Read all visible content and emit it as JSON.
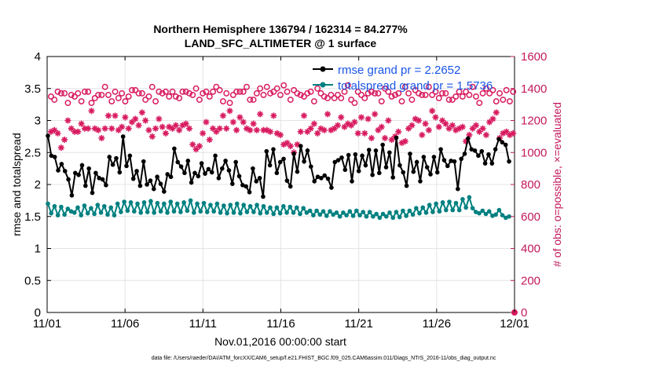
{
  "chart_data": {
    "type": "line",
    "title": "Northern Hemisphere 136794 / 162314 = 84.277%",
    "subtitle": "LAND_SFC_ALTIMETER @ 1 surface",
    "xlabel": "Nov.01,2016 00:00:00 start",
    "ylabel": "rmse and totalspread",
    "y2label": "# of obs: o=possible, ×=evaluated",
    "footer": "data file: /Users/raeder/DAI/ATM_forcXX/CAM6_setup/f.e21.FHIST_BGC.f09_025.CAM6assim.011/Diags_NTrS_2016-11/obs_diag_output.nc",
    "xticks": [
      {
        "day": 0,
        "label": "11/01"
      },
      {
        "day": 5,
        "label": "11/06"
      },
      {
        "day": 10,
        "label": "11/11"
      },
      {
        "day": 15,
        "label": "11/16"
      },
      {
        "day": 20,
        "label": "11/21"
      },
      {
        "day": 25,
        "label": "11/26"
      },
      {
        "day": 30,
        "label": "12/01"
      }
    ],
    "xlim": [
      0,
      30
    ],
    "ylim": [
      0,
      4
    ],
    "yticks": [
      "0",
      "0.5",
      "1",
      "1.5",
      "2",
      "2.5",
      "3",
      "3.5",
      "4"
    ],
    "y2lim": [
      0,
      1600
    ],
    "y2ticks": [
      "0",
      "200",
      "400",
      "600",
      "800",
      "1000",
      "1200",
      "1400",
      "1600"
    ],
    "legend_position": "top-right",
    "colors": {
      "rmse": "#000000",
      "spread": "#008080",
      "obs": "#d81b60",
      "grid": "#e4e4e4"
    },
    "series": [
      {
        "name": "rmse grand pr = 2.2652",
        "axis": "left",
        "values": [
          2.76,
          2.45,
          2.43,
          2.22,
          2.32,
          2.21,
          2.08,
          1.83,
          2.18,
          2.15,
          2.3,
          1.98,
          2.25,
          1.87,
          2.18,
          2.1,
          2.08,
          1.99,
          2.43,
          2.31,
          2.41,
          2.19,
          2.75,
          2.29,
          2.45,
          2.09,
          2.21,
          1.98,
          2.36,
          2.0,
          2.06,
          1.93,
          2.12,
          2.01,
          1.89,
          2.16,
          2.12,
          2.56,
          2.35,
          2.28,
          2.18,
          2.37,
          2.03,
          2.18,
          2.13,
          2.33,
          2.17,
          2.24,
          2.19,
          2.45,
          2.1,
          2.25,
          2.37,
          2.22,
          2.01,
          2.35,
          2.13,
          1.99,
          1.97,
          1.88,
          2.25,
          2.05,
          2.1,
          1.81,
          2.52,
          2.3,
          2.55,
          2.18,
          2.35,
          2.4,
          2.06,
          1.97,
          2.48,
          2.2,
          2.6,
          2.36,
          2.53,
          2.28,
          2.05,
          2.12,
          2.1,
          2.14,
          2.09,
          1.95,
          2.35,
          2.38,
          2.42,
          2.23,
          2.46,
          2.05,
          2.47,
          2.21,
          2.45,
          2.3,
          2.54,
          2.15,
          2.53,
          2.18,
          2.62,
          2.27,
          2.5,
          2.11,
          2.73,
          2.3,
          2.19,
          1.98,
          2.48,
          2.2,
          2.35,
          2.05,
          2.43,
          2.27,
          2.16,
          2.43,
          2.19,
          2.55,
          2.38,
          2.29,
          2.37,
          2.36,
          1.93,
          2.4,
          2.48,
          2.72,
          2.55,
          2.53,
          2.45,
          2.52,
          2.33,
          2.47,
          2.33,
          2.55,
          2.71,
          2.66,
          2.62,
          2.36
        ]
      },
      {
        "name": "totalspread grand pr = 1.5736",
        "axis": "left",
        "values": [
          1.7,
          1.55,
          1.66,
          1.52,
          1.65,
          1.53,
          1.62,
          1.58,
          1.56,
          1.64,
          1.52,
          1.67,
          1.55,
          1.63,
          1.54,
          1.68,
          1.56,
          1.66,
          1.53,
          1.64,
          1.52,
          1.7,
          1.57,
          1.73,
          1.59,
          1.72,
          1.58,
          1.7,
          1.56,
          1.72,
          1.57,
          1.74,
          1.56,
          1.71,
          1.58,
          1.7,
          1.56,
          1.73,
          1.58,
          1.7,
          1.57,
          1.72,
          1.59,
          1.75,
          1.56,
          1.7,
          1.58,
          1.71,
          1.57,
          1.68,
          1.58,
          1.7,
          1.56,
          1.67,
          1.55,
          1.68,
          1.56,
          1.7,
          1.55,
          1.68,
          1.57,
          1.66,
          1.57,
          1.68,
          1.55,
          1.66,
          1.56,
          1.64,
          1.54,
          1.64,
          1.55,
          1.66,
          1.56,
          1.65,
          1.56,
          1.64,
          1.54,
          1.63,
          1.56,
          1.59,
          1.52,
          1.59,
          1.53,
          1.58,
          1.51,
          1.58,
          1.53,
          1.56,
          1.5,
          1.56,
          1.52,
          1.58,
          1.51,
          1.59,
          1.52,
          1.57,
          1.5,
          1.57,
          1.5,
          1.54,
          1.48,
          1.54,
          1.5,
          1.56,
          1.48,
          1.57,
          1.49,
          1.59,
          1.51,
          1.59,
          1.53,
          1.63,
          1.55,
          1.64,
          1.56,
          1.68,
          1.57,
          1.7,
          1.58,
          1.72,
          1.6,
          1.73,
          1.6,
          1.71,
          1.6,
          1.77,
          1.64,
          1.8,
          1.63,
          1.57,
          1.55,
          1.59,
          1.54,
          1.58,
          1.51,
          1.53,
          1.6,
          1.52,
          1.48,
          1.5
        ]
      },
      {
        "name": "obs possible",
        "axis": "right",
        "marker": "circle",
        "values": [
          1350,
          1330,
          1380,
          1370,
          1370,
          1310,
          1360,
          1350,
          1370,
          1320,
          1380,
          1380,
          1310,
          1340,
          1360,
          1360,
          1410,
          1360,
          1320,
          1380,
          1340,
          1370,
          1320,
          1350,
          1390,
          1390,
          1370,
          1370,
          1330,
          1350,
          1410,
          1320,
          1380,
          1370,
          1380,
          1350,
          1380,
          1350,
          1340,
          1380,
          1380,
          1370,
          1360,
          1400,
          1330,
          1370,
          1380,
          1350,
          1380,
          1410,
          1390,
          1320,
          1370,
          1310,
          1360,
          1380,
          1380,
          1380,
          1410,
          1330,
          1330,
          1370,
          1400,
          1360,
          1410,
          1370,
          1380,
          1400,
          1360,
          1420,
          1380,
          1330,
          1390,
          1370,
          1360,
          1350,
          1370,
          1380,
          1320,
          1400,
          1370,
          1350,
          1340,
          1360,
          1340,
          1360,
          1340,
          1380,
          1420,
          1330,
          1310,
          1380,
          1360,
          1340,
          1370,
          1380,
          1370,
          1370,
          1320,
          1400,
          1380,
          1350,
          1360,
          1370,
          1320,
          1410,
          1370,
          1330,
          1390,
          1370,
          1360,
          1360,
          1410,
          1360,
          1380,
          1340,
          1370,
          1370,
          1330,
          1330,
          1350,
          1380,
          1350,
          1380,
          1360,
          1410,
          1350,
          1310,
          1370,
          1400,
          1370,
          1390,
          1320,
          1370,
          1330,
          1390,
          1320,
          1380
        ]
      },
      {
        "name": "obs evaluated",
        "axis": "right",
        "marker": "asterisk",
        "values": [
          1130,
          1140,
          1120,
          1030,
          1080,
          1200,
          1150,
          1130,
          1130,
          1180,
          1150,
          1150,
          1260,
          1150,
          1140,
          1090,
          1150,
          1230,
          1150,
          1230,
          1140,
          1160,
          1220,
          1150,
          1190,
          1210,
          1170,
          1250,
          1200,
          1140,
          1100,
          1150,
          1210,
          1160,
          1120,
          1160,
          1150,
          1170,
          1140,
          1170,
          1180,
          1150,
          1050,
          1020,
          1040,
          1120,
          1190,
          1080,
          1150,
          1130,
          1150,
          1230,
          1150,
          1260,
          1190,
          1140,
          1220,
          1190,
          1150,
          1140,
          1180,
          1140,
          1240,
          1140,
          1140,
          1130,
          1230,
          1120,
          1110,
          1050,
          1060,
          1040,
          1000,
          1050,
          1130,
          1230,
          1130,
          1150,
          1180,
          1120,
          1150,
          1140,
          1240,
          1140,
          1150,
          1170,
          1220,
          1160,
          1180,
          1170,
          1190,
          1120,
          1220,
          1120,
          1210,
          1090,
          1240,
          1140,
          1160,
          1090,
          1200,
          1080,
          1100,
          1130,
          1060,
          1070,
          1150,
          1170,
          1210,
          1200,
          1110,
          1180,
          1140,
          1260,
          1220,
          1160,
          1200,
          1180,
          1150,
          1170,
          1140,
          1150,
          1160,
          1070,
          1110,
          1150,
          1170,
          1130,
          1150,
          1110,
          1190,
          1210,
          1250,
          1090,
          1120,
          1130,
          1110,
          1120
        ]
      }
    ],
    "last_point_obs": 0
  }
}
